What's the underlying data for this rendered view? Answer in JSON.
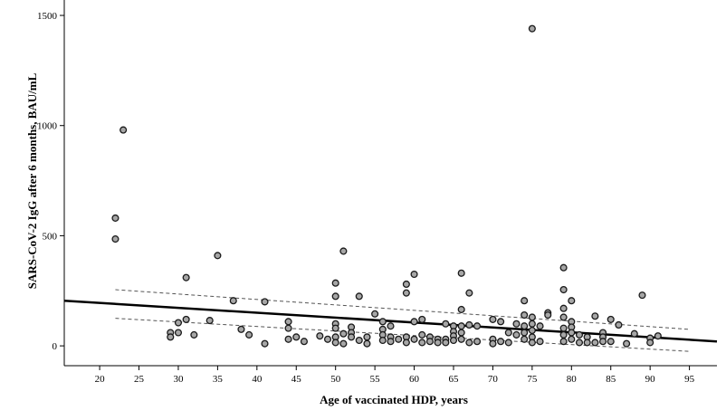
{
  "chart_data": {
    "type": "scatter",
    "xlabel": "Age of vaccinated HDP, years",
    "ylabel": "SARS-CoV-2 IgG after 6 months, BAU/mL",
    "x_ticks": [
      20,
      25,
      30,
      35,
      40,
      45,
      50,
      55,
      60,
      65,
      70,
      75,
      80,
      85,
      90,
      95
    ],
    "y_ticks": [
      0,
      500,
      1000,
      1500
    ],
    "xlim": [
      15.5,
      98.5
    ],
    "ylim": [
      -90,
      1570
    ],
    "grid": false,
    "points": [
      {
        "x": 22,
        "y": 580
      },
      {
        "x": 22,
        "y": 485
      },
      {
        "x": 23,
        "y": 980
      },
      {
        "x": 29,
        "y": 60
      },
      {
        "x": 29,
        "y": 40
      },
      {
        "x": 30,
        "y": 105
      },
      {
        "x": 30,
        "y": 60
      },
      {
        "x": 31,
        "y": 310
      },
      {
        "x": 31,
        "y": 120
      },
      {
        "x": 32,
        "y": 50
      },
      {
        "x": 34,
        "y": 115
      },
      {
        "x": 35,
        "y": 410
      },
      {
        "x": 37,
        "y": 205
      },
      {
        "x": 38,
        "y": 75
      },
      {
        "x": 39,
        "y": 50
      },
      {
        "x": 41,
        "y": 200
      },
      {
        "x": 41,
        "y": 10
      },
      {
        "x": 44,
        "y": 110
      },
      {
        "x": 44,
        "y": 80
      },
      {
        "x": 44,
        "y": 30
      },
      {
        "x": 45,
        "y": 40
      },
      {
        "x": 46,
        "y": 20
      },
      {
        "x": 48,
        "y": 45
      },
      {
        "x": 49,
        "y": 30
      },
      {
        "x": 50,
        "y": 285
      },
      {
        "x": 50,
        "y": 225
      },
      {
        "x": 50,
        "y": 100
      },
      {
        "x": 50,
        "y": 80
      },
      {
        "x": 50,
        "y": 40
      },
      {
        "x": 50,
        "y": 15
      },
      {
        "x": 51,
        "y": 430
      },
      {
        "x": 51,
        "y": 55
      },
      {
        "x": 51,
        "y": 10
      },
      {
        "x": 52,
        "y": 85
      },
      {
        "x": 52,
        "y": 60
      },
      {
        "x": 52,
        "y": 40
      },
      {
        "x": 53,
        "y": 225
      },
      {
        "x": 53,
        "y": 25
      },
      {
        "x": 54,
        "y": 40
      },
      {
        "x": 54,
        "y": 10
      },
      {
        "x": 55,
        "y": 145
      },
      {
        "x": 56,
        "y": 110
      },
      {
        "x": 56,
        "y": 75
      },
      {
        "x": 56,
        "y": 50
      },
      {
        "x": 56,
        "y": 25
      },
      {
        "x": 57,
        "y": 90
      },
      {
        "x": 57,
        "y": 40
      },
      {
        "x": 57,
        "y": 20
      },
      {
        "x": 58,
        "y": 30
      },
      {
        "x": 59,
        "y": 280
      },
      {
        "x": 59,
        "y": 240
      },
      {
        "x": 59,
        "y": 40
      },
      {
        "x": 59,
        "y": 15
      },
      {
        "x": 60,
        "y": 325
      },
      {
        "x": 60,
        "y": 110
      },
      {
        "x": 60,
        "y": 30
      },
      {
        "x": 61,
        "y": 120
      },
      {
        "x": 61,
        "y": 50
      },
      {
        "x": 61,
        "y": 15
      },
      {
        "x": 62,
        "y": 40
      },
      {
        "x": 62,
        "y": 20
      },
      {
        "x": 63,
        "y": 30
      },
      {
        "x": 63,
        "y": 15
      },
      {
        "x": 64,
        "y": 100
      },
      {
        "x": 64,
        "y": 30
      },
      {
        "x": 64,
        "y": 15
      },
      {
        "x": 65,
        "y": 90
      },
      {
        "x": 65,
        "y": 65
      },
      {
        "x": 65,
        "y": 45
      },
      {
        "x": 65,
        "y": 25
      },
      {
        "x": 66,
        "y": 330
      },
      {
        "x": 66,
        "y": 165
      },
      {
        "x": 66,
        "y": 90
      },
      {
        "x": 66,
        "y": 60
      },
      {
        "x": 66,
        "y": 30
      },
      {
        "x": 67,
        "y": 240
      },
      {
        "x": 67,
        "y": 95
      },
      {
        "x": 67,
        "y": 15
      },
      {
        "x": 68,
        "y": 90
      },
      {
        "x": 68,
        "y": 20
      },
      {
        "x": 70,
        "y": 120
      },
      {
        "x": 70,
        "y": 30
      },
      {
        "x": 70,
        "y": 10
      },
      {
        "x": 71,
        "y": 110
      },
      {
        "x": 71,
        "y": 20
      },
      {
        "x": 72,
        "y": 60
      },
      {
        "x": 72,
        "y": 15
      },
      {
        "x": 73,
        "y": 100
      },
      {
        "x": 73,
        "y": 50
      },
      {
        "x": 74,
        "y": 205
      },
      {
        "x": 74,
        "y": 140
      },
      {
        "x": 74,
        "y": 90
      },
      {
        "x": 74,
        "y": 60
      },
      {
        "x": 74,
        "y": 30
      },
      {
        "x": 75,
        "y": 1440
      },
      {
        "x": 75,
        "y": 130
      },
      {
        "x": 75,
        "y": 100
      },
      {
        "x": 75,
        "y": 70
      },
      {
        "x": 75,
        "y": 40
      },
      {
        "x": 75,
        "y": 15
      },
      {
        "x": 76,
        "y": 90
      },
      {
        "x": 76,
        "y": 20
      },
      {
        "x": 77,
        "y": 150
      },
      {
        "x": 77,
        "y": 140
      },
      {
        "x": 79,
        "y": 355
      },
      {
        "x": 79,
        "y": 255
      },
      {
        "x": 79,
        "y": 170
      },
      {
        "x": 79,
        "y": 130
      },
      {
        "x": 79,
        "y": 80
      },
      {
        "x": 79,
        "y": 50
      },
      {
        "x": 79,
        "y": 20
      },
      {
        "x": 80,
        "y": 205
      },
      {
        "x": 80,
        "y": 110
      },
      {
        "x": 80,
        "y": 85
      },
      {
        "x": 80,
        "y": 60
      },
      {
        "x": 80,
        "y": 30
      },
      {
        "x": 81,
        "y": 50
      },
      {
        "x": 81,
        "y": 15
      },
      {
        "x": 82,
        "y": 40
      },
      {
        "x": 82,
        "y": 15
      },
      {
        "x": 83,
        "y": 135
      },
      {
        "x": 83,
        "y": 15
      },
      {
        "x": 84,
        "y": 60
      },
      {
        "x": 84,
        "y": 40
      },
      {
        "x": 84,
        "y": 20
      },
      {
        "x": 85,
        "y": 120
      },
      {
        "x": 85,
        "y": 20
      },
      {
        "x": 86,
        "y": 95
      },
      {
        "x": 87,
        "y": 10
      },
      {
        "x": 88,
        "y": 55
      },
      {
        "x": 89,
        "y": 230
      },
      {
        "x": 90,
        "y": 35
      },
      {
        "x": 90,
        "y": 15
      },
      {
        "x": 91,
        "y": 45
      }
    ],
    "fit_line": {
      "x": [
        15.5,
        98.5
      ],
      "y": [
        205,
        20
      ]
    },
    "ci_upper": {
      "x": [
        22,
        95
      ],
      "y": [
        255,
        75
      ]
    },
    "ci_lower": {
      "x": [
        22,
        95
      ],
      "y": [
        125,
        -25
      ]
    },
    "point_fill": "#a6a6a6",
    "point_stroke": "#1a1a1a"
  }
}
